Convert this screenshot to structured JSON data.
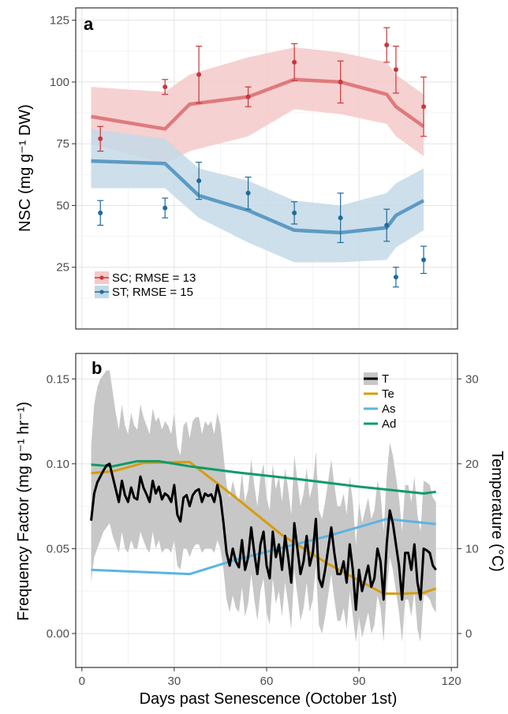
{
  "chart_data": [
    {
      "type": "line",
      "panel_label": "a",
      "ylabel": "NSC (mg g⁻¹ DW)",
      "ylim": [
        0,
        130
      ],
      "yticks": [
        25,
        50,
        75,
        100,
        125
      ],
      "ytick_labels": [
        "25",
        "50",
        "75",
        "100",
        "125"
      ],
      "xlim": [
        -2,
        122
      ],
      "grid": true,
      "legend_position": "bottom-left",
      "colors": {
        "SC": "#c8373a",
        "ST": "#1f6b9a",
        "SC_line": "#df7a7c",
        "ST_line": "#5c9bc4",
        "SC_band": "#f4c9c9",
        "ST_band": "#c4d9e7"
      },
      "series": [
        {
          "name": "SC; RMSE = 13",
          "key": "SC",
          "model_x": [
            3,
            27,
            35,
            54,
            69,
            84,
            99,
            102,
            111
          ],
          "model_y": [
            86,
            81,
            91,
            94,
            101,
            100,
            95,
            90,
            82
          ],
          "band_lower": [
            75,
            67,
            72,
            78,
            89,
            87,
            83,
            78,
            70
          ],
          "band_upper": [
            98,
            96,
            103,
            110,
            114,
            112,
            108,
            103,
            95
          ],
          "obs_x": [
            6,
            27,
            38,
            54,
            69,
            84,
            99,
            102,
            111
          ],
          "obs_y": [
            77,
            98,
            103,
            94,
            108,
            100,
            115,
            105,
            90
          ],
          "obs_err": [
            5,
            3,
            11.5,
            4,
            7.5,
            8.5,
            7,
            9.5,
            12
          ]
        },
        {
          "name": "ST; RMSE = 15",
          "key": "ST",
          "model_x": [
            3,
            27,
            38,
            54,
            69,
            84,
            99,
            102,
            111
          ],
          "model_y": [
            68,
            67,
            54,
            48,
            40,
            39,
            41,
            46,
            52
          ],
          "band_lower": [
            57,
            57,
            45,
            35,
            27,
            27,
            28,
            33,
            40
          ],
          "band_upper": [
            81,
            77,
            65,
            60,
            52,
            50,
            55,
            59,
            65
          ],
          "obs_x": [
            6,
            27,
            38,
            54,
            69,
            84,
            99,
            102,
            111
          ],
          "obs_y": [
            47,
            49,
            60,
            55,
            47,
            45,
            42,
            21,
            28
          ],
          "obs_err": [
            5,
            4,
            7.5,
            6.5,
            4.5,
            10,
            6.5,
            4,
            5.5
          ]
        }
      ]
    },
    {
      "type": "line",
      "panel_label": "b",
      "xlabel": "Days past Senescence (October 1st)",
      "ylabel": "Frequency Factor (mg g⁻¹ hr⁻¹)",
      "y2label": "Temperature (°C)",
      "xlim": [
        -2,
        122
      ],
      "xticks": [
        0,
        30,
        60,
        90,
        120
      ],
      "xtick_labels": [
        "0",
        "30",
        "60",
        "90",
        "120"
      ],
      "ylim": [
        -0.02,
        0.165
      ],
      "yticks": [
        0,
        0.05,
        0.1,
        0.15
      ],
      "ytick_labels": [
        "0.00",
        "0.05",
        "0.10",
        "0.15"
      ],
      "y2lim": [
        -4,
        33
      ],
      "y2ticks": [
        0,
        10,
        20,
        30
      ],
      "y2tick_labels": [
        "0",
        "10",
        "20",
        "30"
      ],
      "grid": true,
      "legend_position": "top-right",
      "series": [
        {
          "name": "T",
          "axis": "right",
          "color": "#000000",
          "band_color": "#c7c7c7",
          "x": [
            3,
            4,
            5,
            6,
            7,
            8,
            9,
            10,
            11,
            12,
            13,
            14,
            15,
            16,
            17,
            18,
            19,
            20,
            21,
            22,
            23,
            24,
            25,
            26,
            27,
            28,
            29,
            30,
            31,
            32,
            33,
            34,
            35,
            36,
            37,
            38,
            39,
            40,
            41,
            42,
            43,
            44,
            45,
            46,
            47,
            48,
            49,
            50,
            51,
            52,
            53,
            54,
            55,
            56,
            57,
            58,
            59,
            60,
            61,
            62,
            63,
            64,
            65,
            66,
            67,
            68,
            69,
            70,
            71,
            72,
            73,
            74,
            75,
            76,
            77,
            78,
            79,
            80,
            81,
            82,
            83,
            84,
            85,
            86,
            87,
            88,
            89,
            90,
            91,
            92,
            93,
            94,
            95,
            96,
            97,
            98,
            99,
            100,
            101,
            102,
            103,
            104,
            105,
            106,
            107,
            108,
            109,
            110,
            111,
            112,
            113,
            114,
            115
          ],
          "y": [
            13.3,
            16.5,
            17.8,
            18.5,
            19.2,
            19.8,
            20.0,
            18.5,
            17.0,
            15.5,
            18.0,
            16.3,
            15.5,
            17.2,
            16.0,
            15.8,
            18.5,
            17.2,
            16.4,
            15.5,
            18.0,
            16.5,
            17.3,
            15.8,
            16.5,
            16.2,
            15.5,
            17.5,
            14.0,
            13.2,
            16.0,
            16.3,
            15.0,
            16.3,
            16.8,
            17.0,
            15.5,
            16.5,
            16.2,
            16.4,
            15.5,
            17.5,
            16.0,
            13.0,
            9.5,
            8.0,
            10.0,
            8.5,
            7.8,
            11.0,
            7.5,
            9.0,
            12.5,
            9.5,
            7.0,
            10.5,
            12.0,
            8.0,
            6.5,
            12.0,
            9.0,
            10.5,
            7.5,
            11.5,
            9.0,
            6.0,
            13.0,
            10.0,
            7.0,
            8.5,
            11.5,
            8.0,
            9.5,
            13.5,
            6.5,
            5.5,
            7.5,
            10.0,
            12.5,
            9.5,
            7.0,
            7.0,
            8.5,
            6.0,
            10.5,
            7.5,
            2.8,
            7.5,
            5.0,
            6.5,
            8.0,
            5.5,
            6.5,
            10.0,
            8.5,
            4.0,
            10.5,
            14.5,
            13.0,
            10.5,
            8.0,
            4.0,
            9.5,
            9.5,
            7.5,
            10.5,
            6.0,
            4.0,
            10.0,
            9.8,
            9.5,
            8.0,
            7.5
          ],
          "band_lower": [
            6.0,
            9.0,
            10.0,
            11.0,
            12.0,
            12.5,
            13.0,
            11.5,
            10.5,
            9.5,
            12.0,
            10.0,
            9.5,
            11.0,
            10.0,
            10.0,
            12.0,
            11.0,
            10.0,
            9.5,
            12.0,
            10.0,
            11.0,
            9.5,
            10.0,
            10.0,
            9.5,
            11.0,
            8.0,
            7.5,
            10.0,
            10.0,
            9.0,
            10.0,
            10.5,
            10.5,
            9.5,
            10.0,
            10.0,
            10.0,
            9.5,
            11.0,
            10.0,
            7.5,
            4.0,
            2.5,
            4.5,
            3.0,
            2.5,
            5.5,
            2.0,
            3.5,
            7.0,
            4.0,
            1.5,
            5.0,
            6.5,
            2.5,
            1.0,
            6.5,
            3.5,
            5.0,
            2.0,
            6.0,
            3.5,
            0.5,
            7.5,
            4.5,
            1.5,
            3.0,
            6.0,
            2.5,
            4.0,
            8.0,
            1.0,
            0.0,
            2.0,
            4.5,
            7.0,
            4.0,
            1.5,
            1.5,
            3.0,
            0.5,
            5.0,
            2.0,
            -1.0,
            2.0,
            -0.5,
            1.0,
            2.5,
            0.0,
            1.0,
            4.5,
            3.0,
            -1.0,
            5.0,
            9.0,
            7.5,
            5.0,
            2.5,
            -1.0,
            4.0,
            4.0,
            2.0,
            5.0,
            0.5,
            -1.0,
            4.5,
            4.5,
            4.0,
            3.0,
            2.5
          ],
          "band_upper": [
            22.0,
            27.0,
            29.0,
            30.0,
            30.5,
            31.0,
            31.0,
            28.5,
            26.0,
            24.0,
            27.0,
            24.5,
            23.5,
            26.0,
            24.5,
            24.0,
            27.0,
            25.5,
            24.5,
            23.5,
            26.5,
            25.0,
            25.5,
            24.0,
            25.0,
            24.5,
            23.5,
            26.0,
            22.0,
            21.0,
            24.5,
            25.0,
            23.0,
            25.0,
            25.5,
            25.5,
            23.5,
            25.0,
            24.5,
            25.0,
            23.5,
            26.0,
            24.5,
            21.0,
            17.5,
            16.0,
            18.0,
            16.5,
            15.5,
            19.0,
            15.5,
            17.0,
            20.5,
            17.5,
            15.0,
            18.5,
            20.0,
            16.0,
            14.5,
            20.0,
            17.0,
            18.5,
            15.5,
            19.5,
            17.0,
            14.0,
            21.0,
            18.0,
            15.0,
            16.5,
            19.5,
            16.0,
            17.5,
            21.5,
            14.5,
            13.5,
            15.5,
            18.0,
            20.5,
            17.5,
            15.0,
            15.0,
            16.5,
            14.0,
            18.5,
            15.5,
            10.5,
            15.5,
            13.0,
            14.5,
            16.0,
            13.5,
            14.5,
            18.0,
            16.5,
            12.0,
            18.5,
            22.5,
            21.0,
            18.5,
            16.0,
            12.0,
            17.5,
            17.5,
            15.5,
            18.5,
            14.0,
            12.0,
            18.0,
            17.8,
            17.5,
            16.0,
            15.5
          ]
        },
        {
          "name": "Te",
          "axis": "left",
          "color": "#d69c0e",
          "x": [
            3,
            10,
            20,
            35,
            50,
            65,
            80,
            98,
            105,
            111,
            115
          ],
          "y": [
            0.0945,
            0.0955,
            0.1005,
            0.101,
            0.08,
            0.058,
            0.041,
            0.0235,
            0.0235,
            0.024,
            0.0265
          ]
        },
        {
          "name": "As",
          "axis": "left",
          "color": "#5bb4e2",
          "x": [
            3,
            35,
            50,
            65,
            80,
            99,
            115
          ],
          "y": [
            0.0375,
            0.035,
            0.0435,
            0.0505,
            0.0575,
            0.0675,
            0.0645
          ]
        },
        {
          "name": "Ad",
          "axis": "left",
          "color": "#0f9b68",
          "x": [
            3,
            10,
            18,
            25,
            35,
            50,
            70,
            90,
            111,
            115
          ],
          "y": [
            0.0995,
            0.0985,
            0.1015,
            0.1015,
            0.0985,
            0.095,
            0.091,
            0.0865,
            0.0825,
            0.0835
          ]
        }
      ]
    }
  ]
}
